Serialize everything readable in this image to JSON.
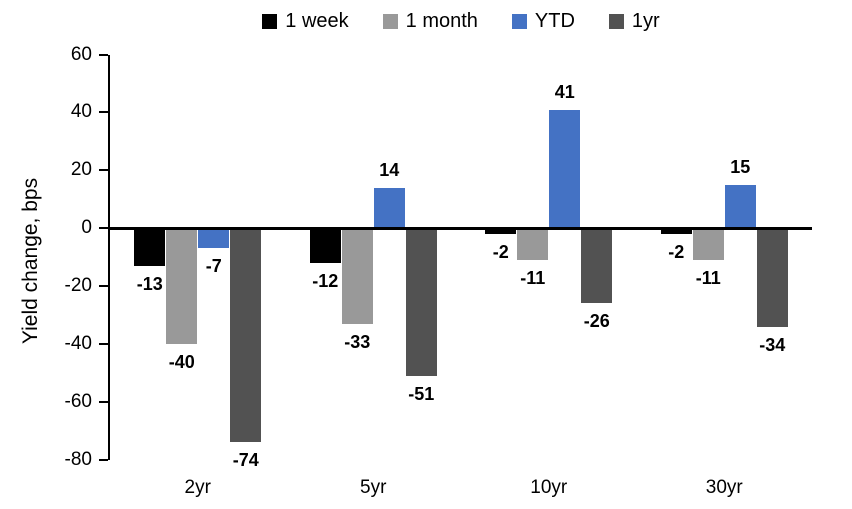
{
  "chart_data": {
    "type": "bar",
    "title": "",
    "xlabel": "",
    "ylabel": "Yield change, bps",
    "categories": [
      "2yr",
      "5yr",
      "10yr",
      "30yr"
    ],
    "series": [
      {
        "name": "1 week",
        "color": "#000000",
        "values": [
          -13,
          -12,
          -2,
          -2
        ]
      },
      {
        "name": "1 month",
        "color": "#999999",
        "values": [
          -40,
          -33,
          -11,
          -11
        ]
      },
      {
        "name": "YTD",
        "color": "#4472C4",
        "values": [
          -7,
          14,
          41,
          15
        ]
      },
      {
        "name": "1yr",
        "color": "#525252",
        "values": [
          -74,
          -51,
          -26,
          -34
        ]
      }
    ],
    "ylim": [
      -80,
      60
    ],
    "yticks": [
      60,
      40,
      20,
      0,
      -20,
      -40,
      -60,
      -80
    ],
    "grid": false,
    "legend_position": "top",
    "data_labels": true,
    "axis_color": "#000000",
    "background_color": "#ffffff"
  }
}
